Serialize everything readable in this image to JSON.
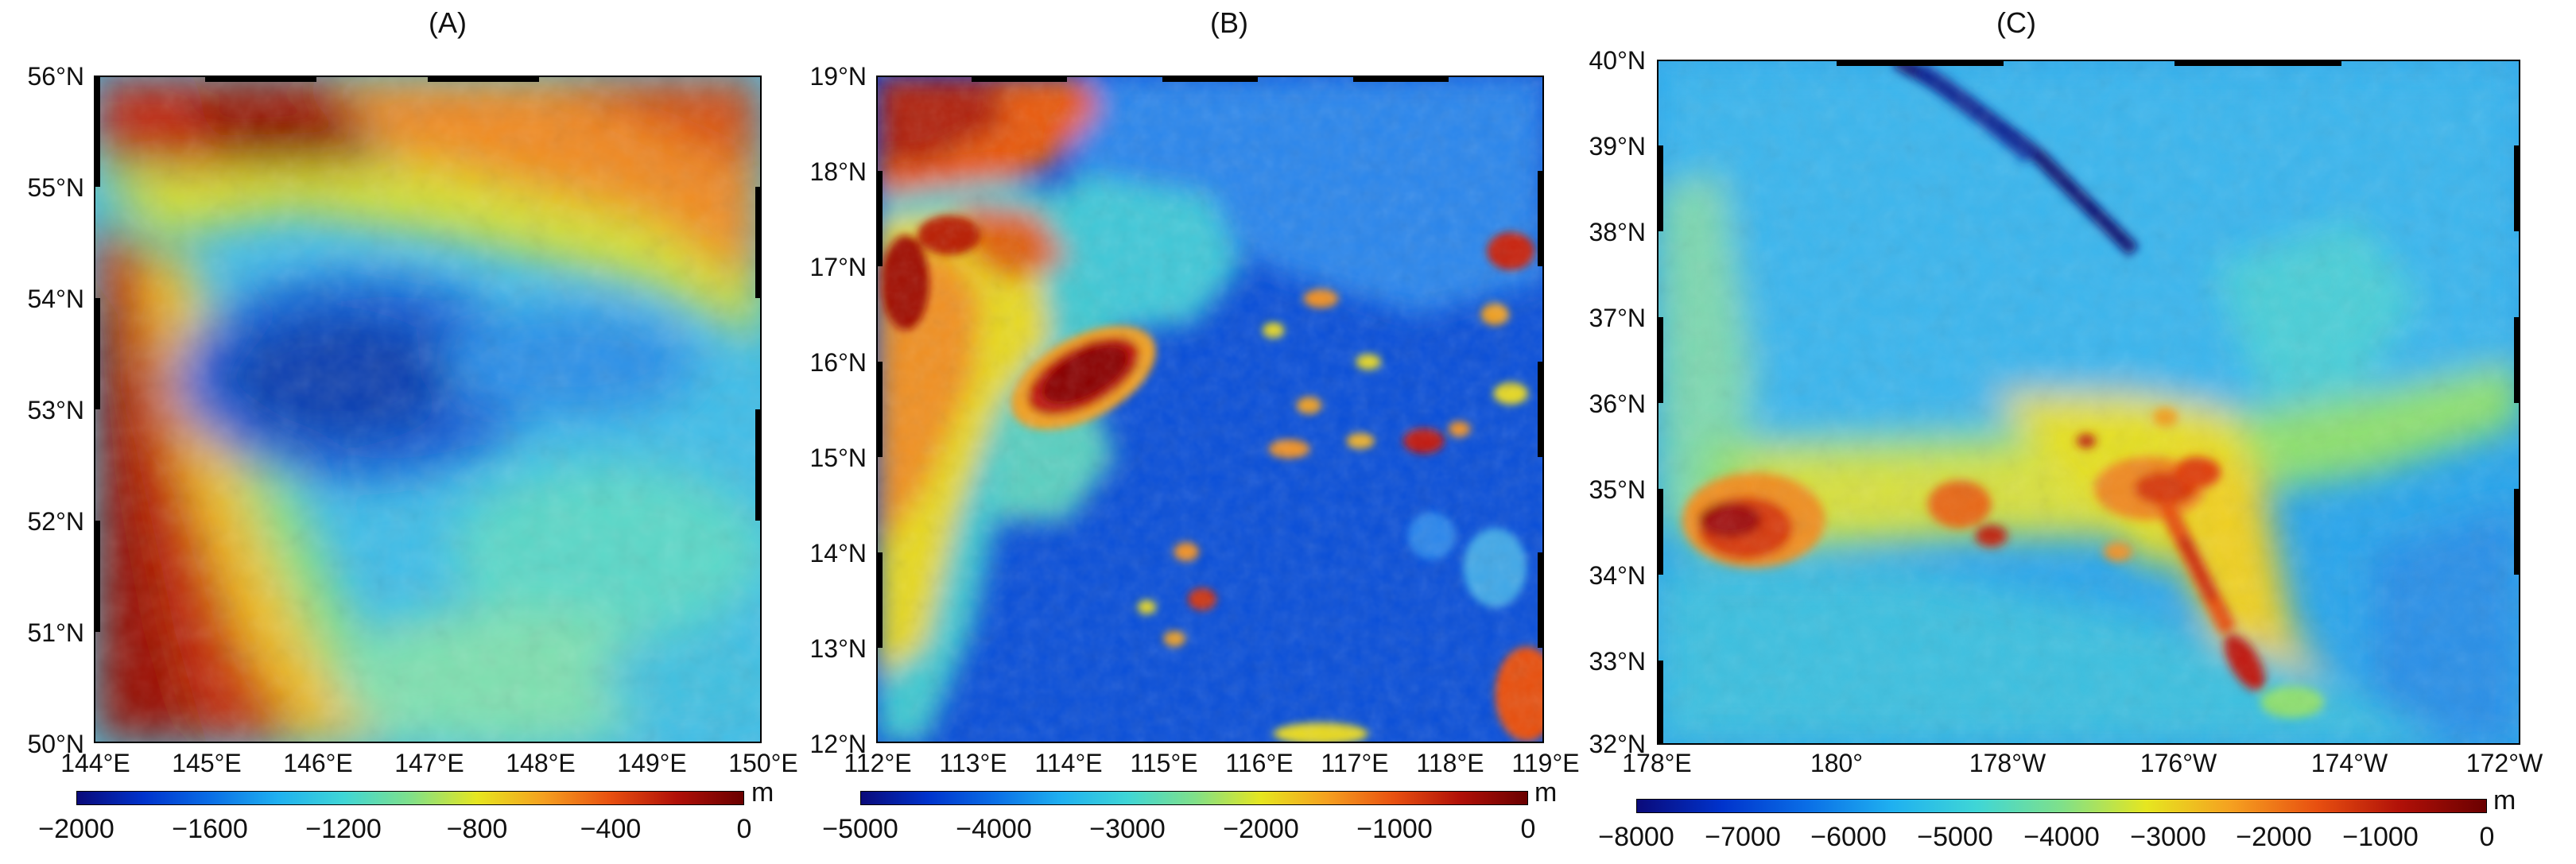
{
  "panels": [
    {
      "title": "(A)",
      "y_ticks": [
        "56°N",
        "55°N",
        "54°N",
        "53°N",
        "52°N",
        "51°N",
        "50°N"
      ],
      "x_ticks": [
        "144°E",
        "145°E",
        "146°E",
        "147°E",
        "148°E",
        "149°E",
        "150°E"
      ],
      "colorbar": {
        "ticks": [
          "−2000",
          "−1600",
          "−1200",
          "−800",
          "−400",
          "0"
        ],
        "unit": "m",
        "range": [
          -2000,
          0
        ]
      }
    },
    {
      "title": "(B)",
      "y_ticks": [
        "19°N",
        "18°N",
        "17°N",
        "16°N",
        "15°N",
        "14°N",
        "13°N",
        "12°N"
      ],
      "x_ticks": [
        "112°E",
        "113°E",
        "114°E",
        "115°E",
        "116°E",
        "117°E",
        "118°E",
        "119°E"
      ],
      "colorbar": {
        "ticks": [
          "−5000",
          "−4000",
          "−3000",
          "−2000",
          "−1000",
          "0"
        ],
        "unit": "m",
        "range": [
          -5000,
          0
        ]
      }
    },
    {
      "title": "(C)",
      "y_ticks": [
        "40°N",
        "39°N",
        "38°N",
        "37°N",
        "36°N",
        "35°N",
        "34°N",
        "33°N",
        "32°N"
      ],
      "x_ticks": [
        "178°E",
        "180°",
        "178°W",
        "176°W",
        "174°W",
        "172°W"
      ],
      "colorbar": {
        "ticks": [
          "−8000",
          "−7000",
          "−6000",
          "−5000",
          "−4000",
          "−3000",
          "−2000",
          "−1000",
          "0"
        ],
        "unit": "m",
        "range": [
          -8000,
          0
        ]
      }
    }
  ],
  "colormap": [
    "#0a0a7a",
    "#0033cc",
    "#0a6ee6",
    "#1fb0f0",
    "#3fd6d6",
    "#7fe08a",
    "#e6e620",
    "#f5a020",
    "#e85010",
    "#b01008",
    "#6a0000"
  ]
}
